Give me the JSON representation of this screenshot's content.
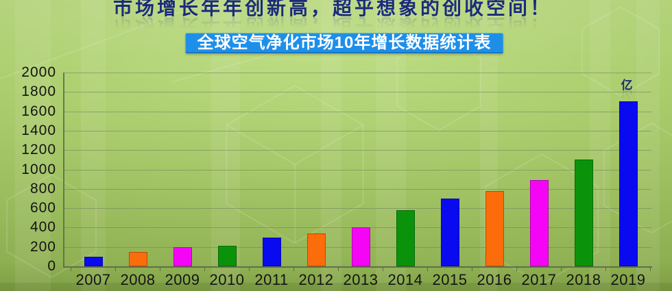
{
  "header": {
    "title": "市场增长年年创新高，超乎想象的创收空间！",
    "banner": "全球空气净化市场10年增长数据统计表"
  },
  "chart_data": {
    "type": "bar",
    "title": "全球空气净化市场10年增长数据统计表",
    "unit_label": "亿",
    "categories": [
      "2007",
      "2008",
      "2009",
      "2010",
      "2011",
      "2012",
      "2013",
      "2014",
      "2015",
      "2016",
      "2017",
      "2018",
      "2019"
    ],
    "values": [
      100,
      150,
      200,
      210,
      300,
      340,
      400,
      580,
      700,
      780,
      890,
      1100,
      1700
    ],
    "series_colors_cycle": [
      "#0a0af0",
      "#fb6c0a",
      "#f505f5",
      "#0a930a"
    ],
    "ylim": [
      0,
      2000
    ],
    "ytick_step": 200,
    "yticks": [
      0,
      200,
      400,
      600,
      800,
      1000,
      1200,
      1400,
      1600,
      1800,
      2000
    ],
    "grid": true,
    "legend": "none",
    "xlabel": "",
    "ylabel": ""
  },
  "colors": {
    "title_text": "#1b2b7a",
    "banner_bg": "#1e8fe9",
    "banner_text": "#ffffff",
    "bg_green_light": "#bcdc82",
    "bg_green_dark": "#90b150",
    "grid_line": "#6f7d5a",
    "axis_line": "#5c6a48",
    "tick_label": "#141414"
  }
}
